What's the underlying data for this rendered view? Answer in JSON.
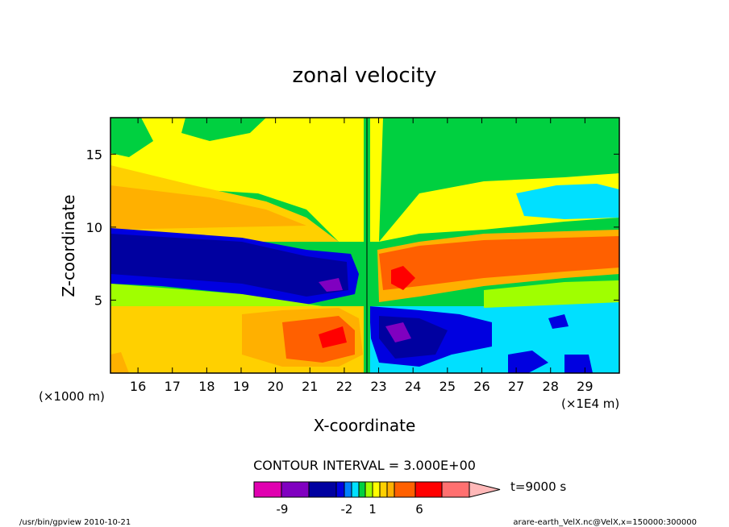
{
  "chart_data": {
    "type": "heatmap",
    "title": "zonal velocity",
    "xlabel": "X-coordinate",
    "ylabel": "Z-coordinate",
    "x_unit_left": "(×1000 m)",
    "x_unit_right": "(×1E4 m)",
    "x_ticks": [
      16,
      17,
      18,
      19,
      20,
      21,
      22,
      23,
      24,
      25,
      26,
      27,
      28,
      29
    ],
    "y_ticks": [
      5,
      10,
      15
    ],
    "xlim": [
      15.2,
      30
    ],
    "ylim": [
      0,
      17.5
    ],
    "contour_interval_label": "CONTOUR INTERVAL = 3.000E+00",
    "time_label": "t=9000 s",
    "colorbar": {
      "colors": [
        "#e000b0",
        "#8000c0",
        "#0000a0",
        "#0000e0",
        "#0080ff",
        "#00e0ff",
        "#00d040",
        "#a0ff00",
        "#ffff00",
        "#ffd000",
        "#ffb000",
        "#ff6000",
        "#ff0000",
        "#ff7070",
        "#ffb8b8"
      ],
      "tick_labels": [
        "-9",
        "-2",
        "1",
        "6"
      ]
    },
    "regions": [
      {
        "name": "upper-left-blue-jet",
        "value": -9,
        "x": [
          15.2,
          22.2
        ],
        "z": [
          5.5,
          9.5
        ]
      },
      {
        "name": "upper-right-orange-jet",
        "value": 6,
        "x": [
          22.8,
          30
        ],
        "z": [
          6,
          9.5
        ]
      },
      {
        "name": "lower-left-orange",
        "value": 6,
        "x": [
          20,
          22.3
        ],
        "z": [
          0.5,
          4.5
        ]
      },
      {
        "name": "lower-right-blue",
        "value": -9,
        "x": [
          22.8,
          25.2
        ],
        "z": [
          0.3,
          4.5
        ]
      },
      {
        "name": "lower-right-cyan",
        "value": -2,
        "x": [
          25,
          30
        ],
        "z": [
          0.3,
          4.5
        ]
      },
      {
        "name": "top-yellow",
        "value": 1,
        "x": [
          17,
          22.5
        ],
        "z": [
          13,
          17.5
        ]
      },
      {
        "name": "top-green",
        "value": 0,
        "x": [
          22.5,
          30
        ],
        "z": [
          11,
          17.5
        ]
      }
    ]
  },
  "footer": {
    "left": "/usr/bin/gpview  2010-10-21",
    "right": "arare-earth_VelX.nc@VelX,x=150000:300000"
  }
}
